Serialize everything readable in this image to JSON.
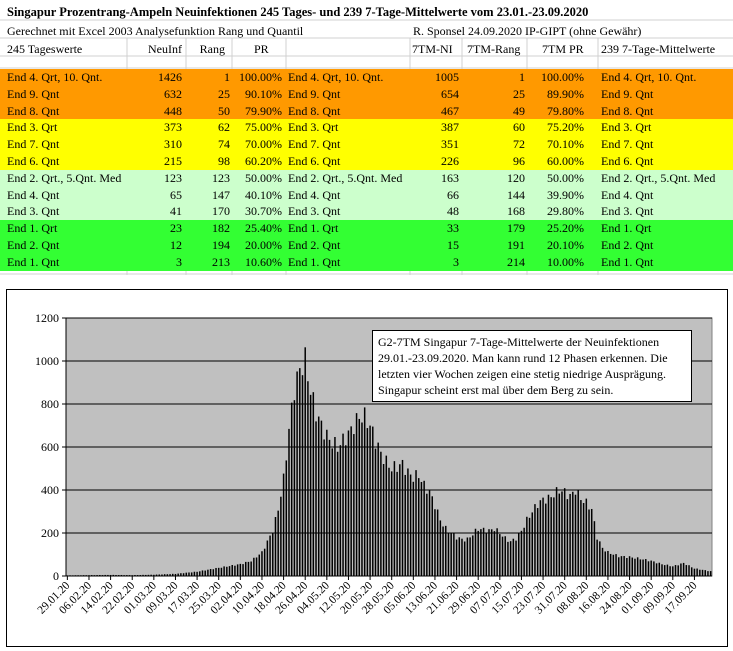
{
  "sheet": {
    "title": "Singapur Prozentrang-Ampeln Neuinfektionen 245 Tages- und 239 7-Tage-Mittelwerte vom 23.01.-23.09.2020",
    "subtitle_left": "Gerechnet mit Excel 2003 Analysefunktion Rang und Quantil",
    "subtitle_right": "R. Sponsel 24.09.2020 IP-GIPT (ohne Gewähr)",
    "headers": {
      "label_left": "245 Tageswerte",
      "neuinf": "NeuInf",
      "rang": "Rang",
      "pr": "PR",
      "tm_ni": "7TM-NI",
      "tm_rang": "7TM-Rang",
      "tm_pr": "7TM PR",
      "label_right": "239 7-Tage-Mittelwerte"
    },
    "colors": {
      "orange": "#ff9900",
      "yellow": "#ffff00",
      "light_green": "#ccffcc",
      "green": "#33ff33"
    },
    "rows": [
      {
        "label": "End 4. Qrt, 10. Qnt.",
        "neuinf": "1426",
        "rang": "1",
        "pr": "100.00%",
        "label2": "End 4. Qrt, 10. Qnt.",
        "tm_ni": "1005",
        "tm_rang": "1",
        "tm_pr": "100.00%",
        "label3": "End 4. Qrt, 10. Qnt.",
        "color": "orange"
      },
      {
        "label": "End 9. Qnt",
        "neuinf": "632",
        "rang": "25",
        "pr": "90.10%",
        "label2": "End 9. Qnt",
        "tm_ni": "654",
        "tm_rang": "25",
        "tm_pr": "89.90%",
        "label3": "End 9. Qnt",
        "color": "orange"
      },
      {
        "label": "End 8. Qnt",
        "neuinf": "448",
        "rang": "50",
        "pr": "79.90%",
        "label2": "End 8. Qnt",
        "tm_ni": "467",
        "tm_rang": "49",
        "tm_pr": "79.80%",
        "label3": "End 8. Qnt",
        "color": "orange"
      },
      {
        "label": "End 3. Qrt",
        "neuinf": "373",
        "rang": "62",
        "pr": "75.00%",
        "label2": "End 3. Qrt",
        "tm_ni": "387",
        "tm_rang": "60",
        "tm_pr": "75.20%",
        "label3": "End 3. Qrt",
        "color": "yellow"
      },
      {
        "label": "End 7. Qnt",
        "neuinf": "310",
        "rang": "74",
        "pr": "70.00%",
        "label2": "End 7. Qnt",
        "tm_ni": "351",
        "tm_rang": "72",
        "tm_pr": "70.10%",
        "label3": "End 7. Qnt",
        "color": "yellow"
      },
      {
        "label": "End 6. Qnt",
        "neuinf": "215",
        "rang": "98",
        "pr": "60.20%",
        "label2": "End 6. Qnt",
        "tm_ni": "226",
        "tm_rang": "96",
        "tm_pr": "60.00%",
        "label3": "End 6. Qnt",
        "color": "yellow"
      },
      {
        "label": "End 2. Qrt., 5.Qnt. Med",
        "neuinf": "123",
        "rang": "123",
        "pr": "50.00%",
        "label2": "End 2. Qrt., 5.Qnt. Med",
        "tm_ni": "163",
        "tm_rang": "120",
        "tm_pr": "50.00%",
        "label3": "End 2. Qrt., 5.Qnt. Med",
        "color": "light_green"
      },
      {
        "label": "End 4. Qnt",
        "neuinf": "65",
        "rang": "147",
        "pr": "40.10%",
        "label2": "End 4. Qnt",
        "tm_ni": "66",
        "tm_rang": "144",
        "tm_pr": "39.90%",
        "label3": "End 4. Qnt",
        "color": "light_green"
      },
      {
        "label": "End 3. Qnt",
        "neuinf": "41",
        "rang": "170",
        "pr": "30.70%",
        "label2": "End 3. Qnt",
        "tm_ni": "48",
        "tm_rang": "168",
        "tm_pr": "29.80%",
        "label3": "End 3. Qnt",
        "color": "light_green"
      },
      {
        "label": "End 1. Qrt",
        "neuinf": "23",
        "rang": "182",
        "pr": "25.40%",
        "label2": "End 1. Qrt",
        "tm_ni": "33",
        "tm_rang": "179",
        "tm_pr": "25.20%",
        "label3": "End 1. Qrt",
        "color": "green"
      },
      {
        "label": "End 2. Qnt",
        "neuinf": "12",
        "rang": "194",
        "pr": "20.00%",
        "label2": "End 2. Qnt",
        "tm_ni": "15",
        "tm_rang": "191",
        "tm_pr": "20.10%",
        "label3": "End 2. Qnt",
        "color": "green"
      },
      {
        "label": "End 1. Qnt",
        "neuinf": "3",
        "rang": "213",
        "pr": "10.60%",
        "label2": "End 1. Qnt",
        "tm_ni": "3",
        "tm_rang": "214",
        "tm_pr": "10.00%",
        "label3": "End 1. Qnt",
        "color": "green"
      }
    ]
  },
  "chart_data": {
    "type": "bar",
    "title": "",
    "xlabel": "",
    "ylabel": "",
    "ylim": [
      0,
      1200
    ],
    "yticks": [
      "0",
      "200",
      "400",
      "600",
      "800",
      "1000",
      "1200"
    ],
    "grid": "horizontal",
    "plot_color": "#c0c0c0",
    "bar_color": "#000000",
    "annotation": "G2-7TM  Singapur 7-Tage-Mittelwerte der Neuinfektionen 29.01.-23.09.2020. Man kann rund 12 Phasen erkennen. Die letzten vier Wochen zeigen eine stetig niedrige Ausprägung. Singapur scheint erst mal über dem Berg zu sein.",
    "tick_labels": [
      "29.01.20",
      "06.02.20",
      "14.02.20",
      "22.02.20",
      "01.03.20",
      "09.03.20",
      "17.03.20",
      "25.03.20",
      "02.04.20",
      "10.04.20",
      "18.04.20",
      "26.04.20",
      "04.05.20",
      "12.05.20",
      "20.05.20",
      "28.05.20",
      "05.06.20",
      "13.06.20",
      "21.06.20",
      "29.06.20",
      "07.07.20",
      "15.07.20",
      "23.07.20",
      "31.07.20",
      "08.08.20",
      "16.08.20",
      "24.08.20",
      "01.09.20",
      "09.09.20",
      "17.09.20"
    ],
    "x_start": "29.01.20",
    "x_end": "23.09.20",
    "anchors": [
      [
        "29.01.20",
        3
      ],
      [
        "06.02.20",
        4
      ],
      [
        "14.02.20",
        5
      ],
      [
        "22.02.20",
        4
      ],
      [
        "01.03.20",
        6
      ],
      [
        "09.03.20",
        10
      ],
      [
        "17.03.20",
        20
      ],
      [
        "25.03.20",
        38
      ],
      [
        "02.04.20",
        55
      ],
      [
        "06.04.20",
        70
      ],
      [
        "10.04.20",
        110
      ],
      [
        "14.04.20",
        210
      ],
      [
        "16.04.20",
        310
      ],
      [
        "18.04.20",
        450
      ],
      [
        "20.04.20",
        680
      ],
      [
        "22.04.20",
        870
      ],
      [
        "24.04.20",
        960
      ],
      [
        "26.04.20",
        1005
      ],
      [
        "28.04.20",
        860
      ],
      [
        "30.04.20",
        760
      ],
      [
        "02.05.20",
        700
      ],
      [
        "04.05.20",
        650
      ],
      [
        "06.05.20",
        620
      ],
      [
        "08.05.20",
        600
      ],
      [
        "10.05.20",
        630
      ],
      [
        "12.05.20",
        660
      ],
      [
        "14.05.20",
        700
      ],
      [
        "16.05.20",
        740
      ],
      [
        "18.05.20",
        740
      ],
      [
        "20.05.20",
        700
      ],
      [
        "22.05.20",
        630
      ],
      [
        "24.05.20",
        570
      ],
      [
        "26.05.20",
        530
      ],
      [
        "28.05.20",
        500
      ],
      [
        "30.05.20",
        510
      ],
      [
        "01.06.20",
        520
      ],
      [
        "03.06.20",
        480
      ],
      [
        "05.06.20",
        460
      ],
      [
        "07.06.20",
        470
      ],
      [
        "09.06.20",
        420
      ],
      [
        "11.06.20",
        390
      ],
      [
        "13.06.20",
        330
      ],
      [
        "15.06.20",
        260
      ],
      [
        "17.06.20",
        220
      ],
      [
        "19.06.20",
        200
      ],
      [
        "21.06.20",
        180
      ],
      [
        "23.06.20",
        170
      ],
      [
        "25.06.20",
        170
      ],
      [
        "27.06.20",
        195
      ],
      [
        "29.06.20",
        220
      ],
      [
        "01.07.20",
        215
      ],
      [
        "03.07.20",
        210
      ],
      [
        "05.07.20",
        220
      ],
      [
        "07.07.20",
        200
      ],
      [
        "09.07.20",
        175
      ],
      [
        "11.07.20",
        160
      ],
      [
        "13.07.20",
        175
      ],
      [
        "15.07.20",
        210
      ],
      [
        "17.07.20",
        260
      ],
      [
        "19.07.20",
        300
      ],
      [
        "21.07.20",
        335
      ],
      [
        "23.07.20",
        355
      ],
      [
        "25.07.20",
        360
      ],
      [
        "27.07.20",
        380
      ],
      [
        "29.07.20",
        400
      ],
      [
        "31.07.20",
        390
      ],
      [
        "02.08.20",
        370
      ],
      [
        "04.08.20",
        400
      ],
      [
        "06.08.20",
        360
      ],
      [
        "08.08.20",
        340
      ],
      [
        "10.08.20",
        310
      ],
      [
        "12.08.20",
        180
      ],
      [
        "14.08.20",
        130
      ],
      [
        "16.08.20",
        110
      ],
      [
        "20.08.20",
        92
      ],
      [
        "24.08.20",
        88
      ],
      [
        "28.08.20",
        80
      ],
      [
        "01.09.20",
        70
      ],
      [
        "05.09.20",
        55
      ],
      [
        "09.09.20",
        45
      ],
      [
        "13.09.20",
        60
      ],
      [
        "17.09.20",
        35
      ],
      [
        "23.09.20",
        22
      ]
    ]
  }
}
